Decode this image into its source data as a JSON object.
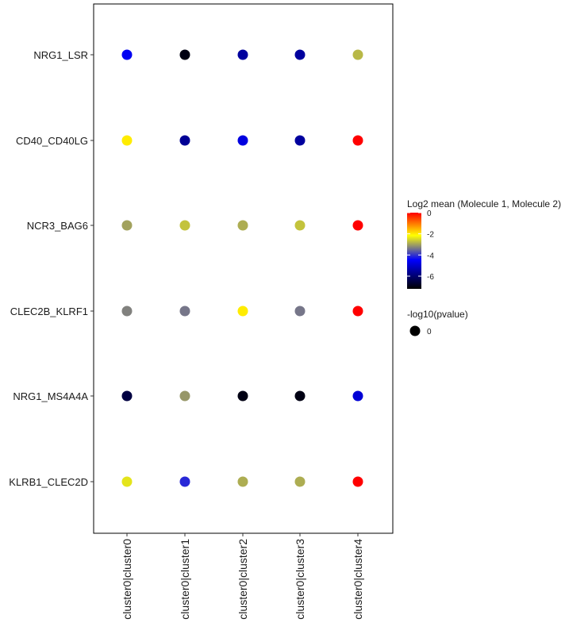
{
  "chart_data": {
    "type": "dot",
    "x_categories": [
      "cluster0|cluster0",
      "cluster0|cluster1",
      "cluster0|cluster2",
      "cluster0|cluster3",
      "cluster0|cluster4"
    ],
    "y_categories": [
      "NRG1_LSR",
      "CD40_CD40LG",
      "NCR3_BAG6",
      "CLEC2B_KLRF1",
      "NRG1_MS4A4A",
      "KLRB1_CLEC2D"
    ],
    "values": [
      [
        -4.6,
        -7.0,
        -5.5,
        -5.5,
        -2.8
      ],
      [
        -2.0,
        -5.6,
        -4.8,
        -5.5,
        0.0
      ],
      [
        -3.0,
        -2.7,
        -2.9,
        -2.7,
        0.0
      ],
      [
        -3.3,
        -3.4,
        -2.0,
        -3.4,
        0.0
      ],
      [
        -6.5,
        -3.1,
        -7.0,
        -7.0,
        -4.9
      ],
      [
        -2.4,
        -4.1,
        -2.9,
        -2.9,
        0.0
      ]
    ],
    "color_legend": {
      "title": "Log2 mean (Molecule 1, Molecule 2)",
      "min": -7.2,
      "max": 0,
      "ticks": [
        "0",
        "-2",
        "-4",
        "-6"
      ],
      "tick_values": [
        0,
        -2,
        -4,
        -6
      ],
      "palette": [
        "#000000",
        "#0000ff",
        "#ffff00",
        "#ff0000"
      ]
    },
    "size_legend": {
      "title": "-log10(pvalue)",
      "label": "0"
    }
  }
}
